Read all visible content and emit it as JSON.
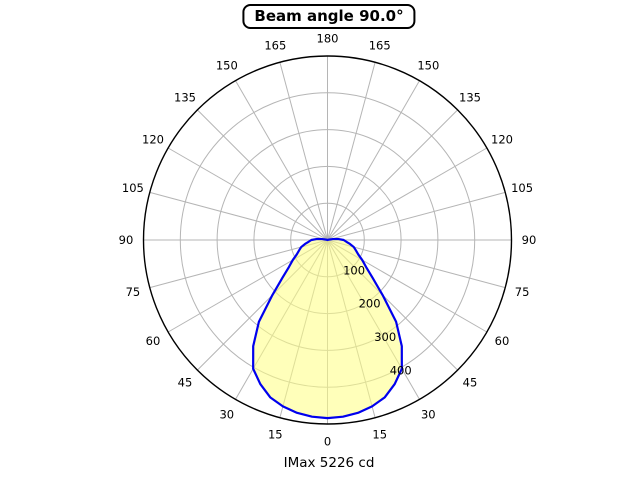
{
  "title": "Beam angle 90.0°",
  "footer": "IMax 5226 cd",
  "chart_data": {
    "type": "line",
    "projection": "polar",
    "title": "Beam angle 90.0°",
    "annotation": "IMax 5226 cd",
    "imax_cd": 5226,
    "beam_angle_deg": 90.0,
    "theta_zero_location": "bottom",
    "theta_tick_step_deg": 15,
    "theta_tick_labels_deg": [
      0,
      15,
      30,
      45,
      60,
      75,
      90,
      105,
      120,
      135,
      150,
      165,
      180
    ],
    "theta_ticks_mirrored_both_sides": true,
    "r_ticks": [
      100,
      200,
      300,
      400
    ],
    "r_max": 500,
    "grid": true,
    "series": [
      {
        "name": "luminous-intensity-curve",
        "symmetric_about_vertical_axis": true,
        "angles_deg": [
          0,
          5,
          10,
          15,
          20,
          25,
          30,
          35,
          40,
          45,
          50,
          55,
          60,
          65,
          70,
          75,
          80,
          85,
          90,
          95,
          100,
          105,
          110,
          115,
          120,
          125,
          130,
          135,
          140,
          145,
          150,
          155,
          160,
          165,
          170,
          175,
          180
        ],
        "values": [
          484,
          482,
          477,
          468,
          455,
          432,
          404,
          352,
          290,
          212,
          160,
          128,
          109,
          92,
          82,
          74,
          62,
          51,
          44,
          30,
          15,
          4,
          0,
          0,
          0,
          0,
          0,
          0,
          0,
          0,
          0,
          0,
          0,
          0,
          0,
          0,
          0
        ]
      }
    ],
    "colors": {
      "curve": "#0000ee",
      "fill": "#ffff82",
      "fill_opacity": 0.55,
      "grid": "#b5b5b5",
      "outline": "#000000"
    }
  }
}
